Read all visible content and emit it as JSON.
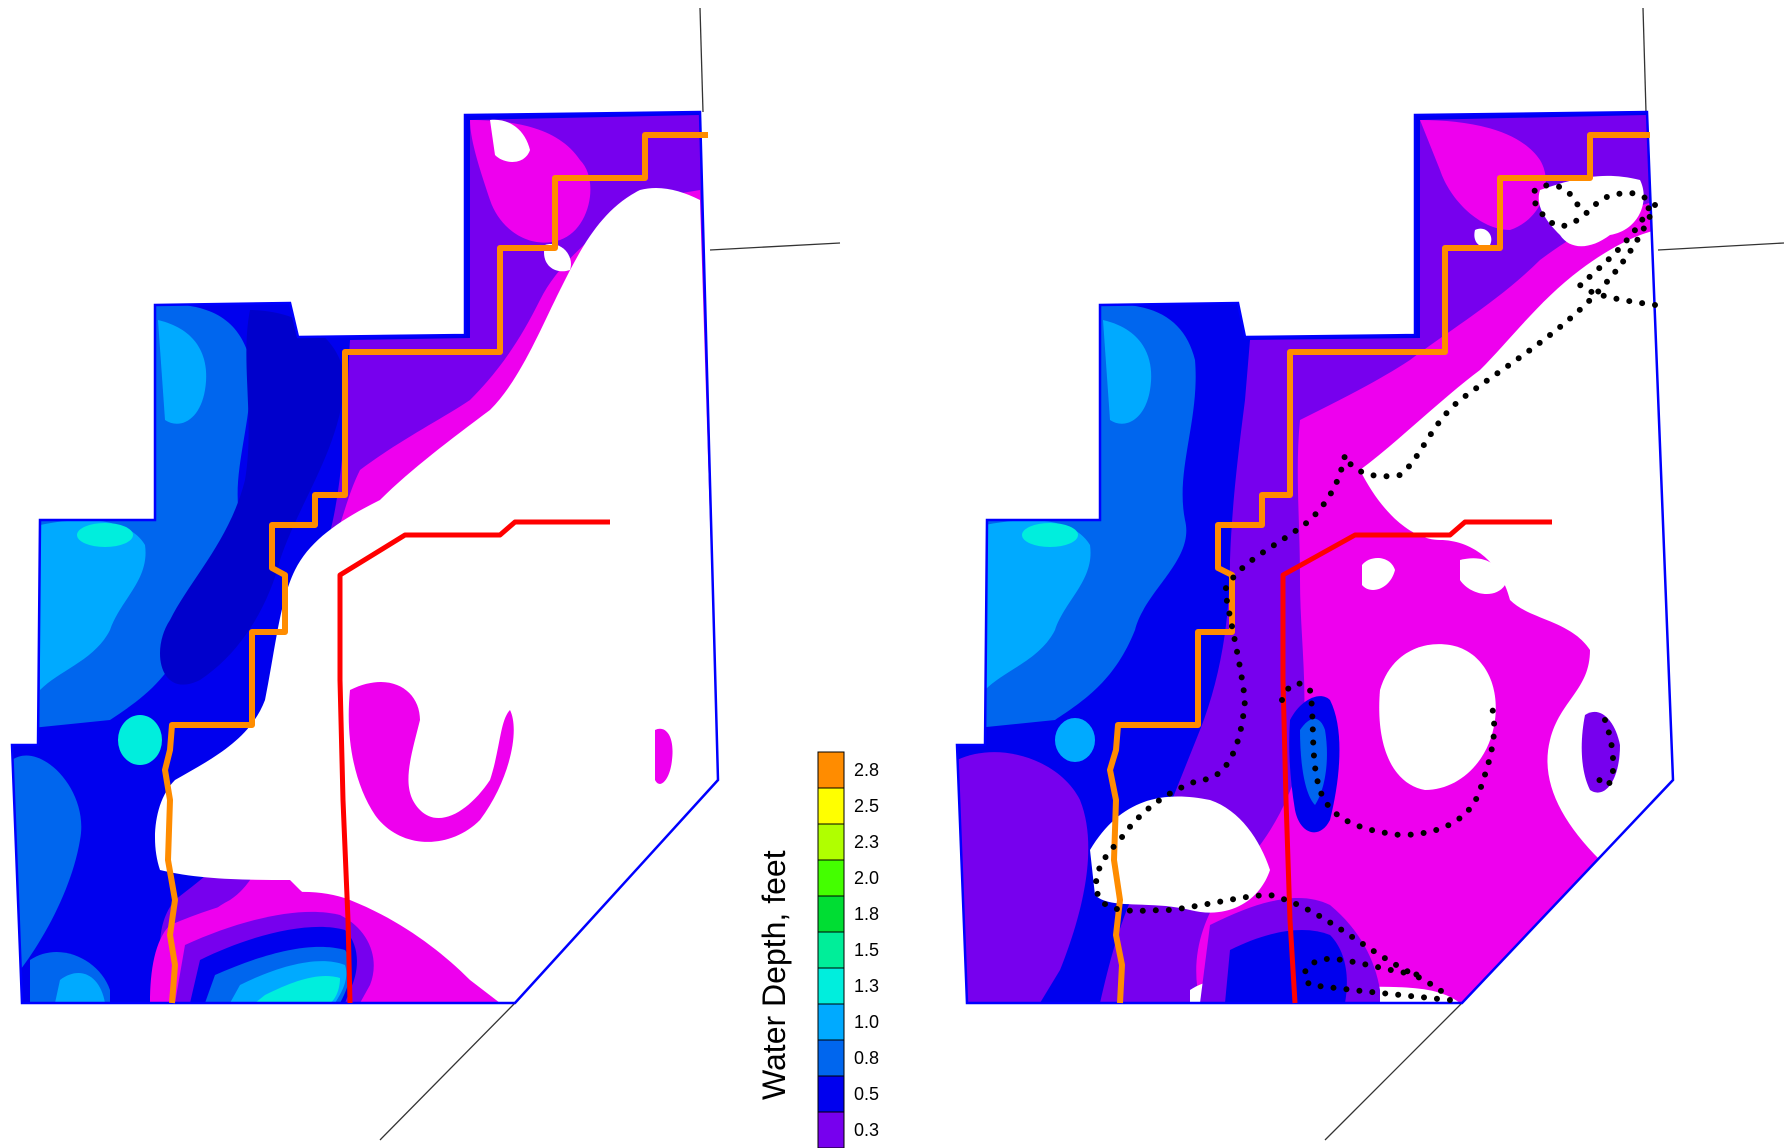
{
  "legend": {
    "title": "Water Depth, feet",
    "entries": [
      {
        "label": "2.8",
        "color": "#ff8c00"
      },
      {
        "label": "2.5",
        "color": "#ffff00"
      },
      {
        "label": "2.3",
        "color": "#b0ff00"
      },
      {
        "label": "2.0",
        "color": "#44ff00"
      },
      {
        "label": "1.8",
        "color": "#00dd33"
      },
      {
        "label": "1.5",
        "color": "#00ee99"
      },
      {
        "label": "1.3",
        "color": "#00eedd"
      },
      {
        "label": "1.0",
        "color": "#00aaff"
      },
      {
        "label": "0.8",
        "color": "#0066ee"
      },
      {
        "label": "0.5",
        "color": "#0000ee"
      },
      {
        "label": "0.3",
        "color": "#7700ee"
      },
      {
        "label": "",
        "color": "#ee00ee"
      }
    ]
  },
  "colors": {
    "boundary": "#0000ff",
    "orange_line": "#ff8c00",
    "red_line": "#ff0000",
    "dotted_outline": "#000000",
    "road_line": "#333333"
  }
}
